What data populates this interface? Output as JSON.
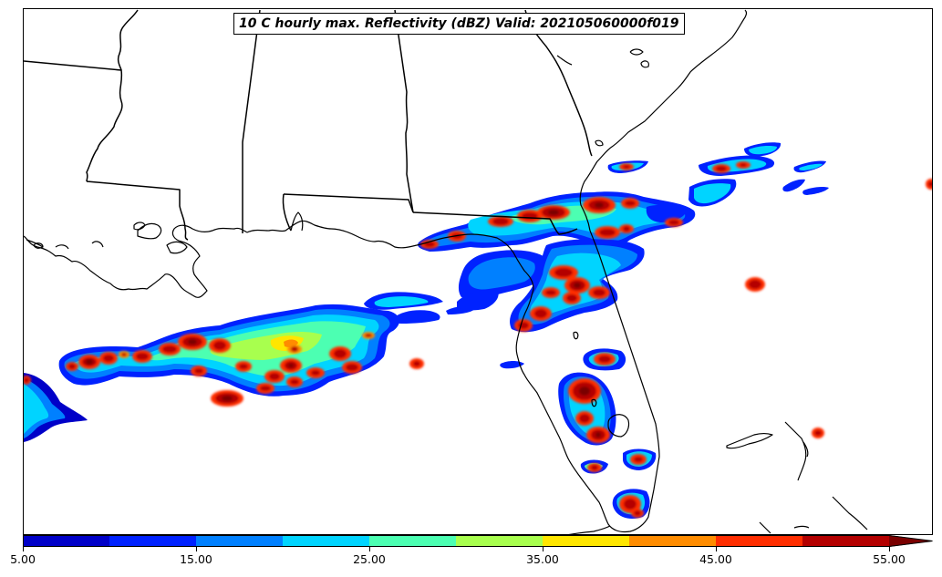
{
  "title": "10 C hourly max. Reflectivity (dBZ) Valid: 202105060000f019",
  "colorbar": {
    "variable": "Reflectivity (dBZ)",
    "min": 5,
    "max": 55,
    "extend": "max",
    "tick_labels": [
      "5.00",
      "15.00",
      "25.00",
      "35.00",
      "45.00",
      "55.00"
    ],
    "colors": [
      "#0000c8",
      "#0022ff",
      "#0080ff",
      "#00d4ff",
      "#4cffb2",
      "#a8ff4e",
      "#ffe600",
      "#ff8c00",
      "#ff2e00",
      "#b40000",
      "#7a0000"
    ]
  },
  "map": {
    "region": "Southeastern United States / Gulf of Mexico",
    "projection": "Lambert Conformal",
    "features": [
      "coastlines",
      "state-borders"
    ]
  }
}
